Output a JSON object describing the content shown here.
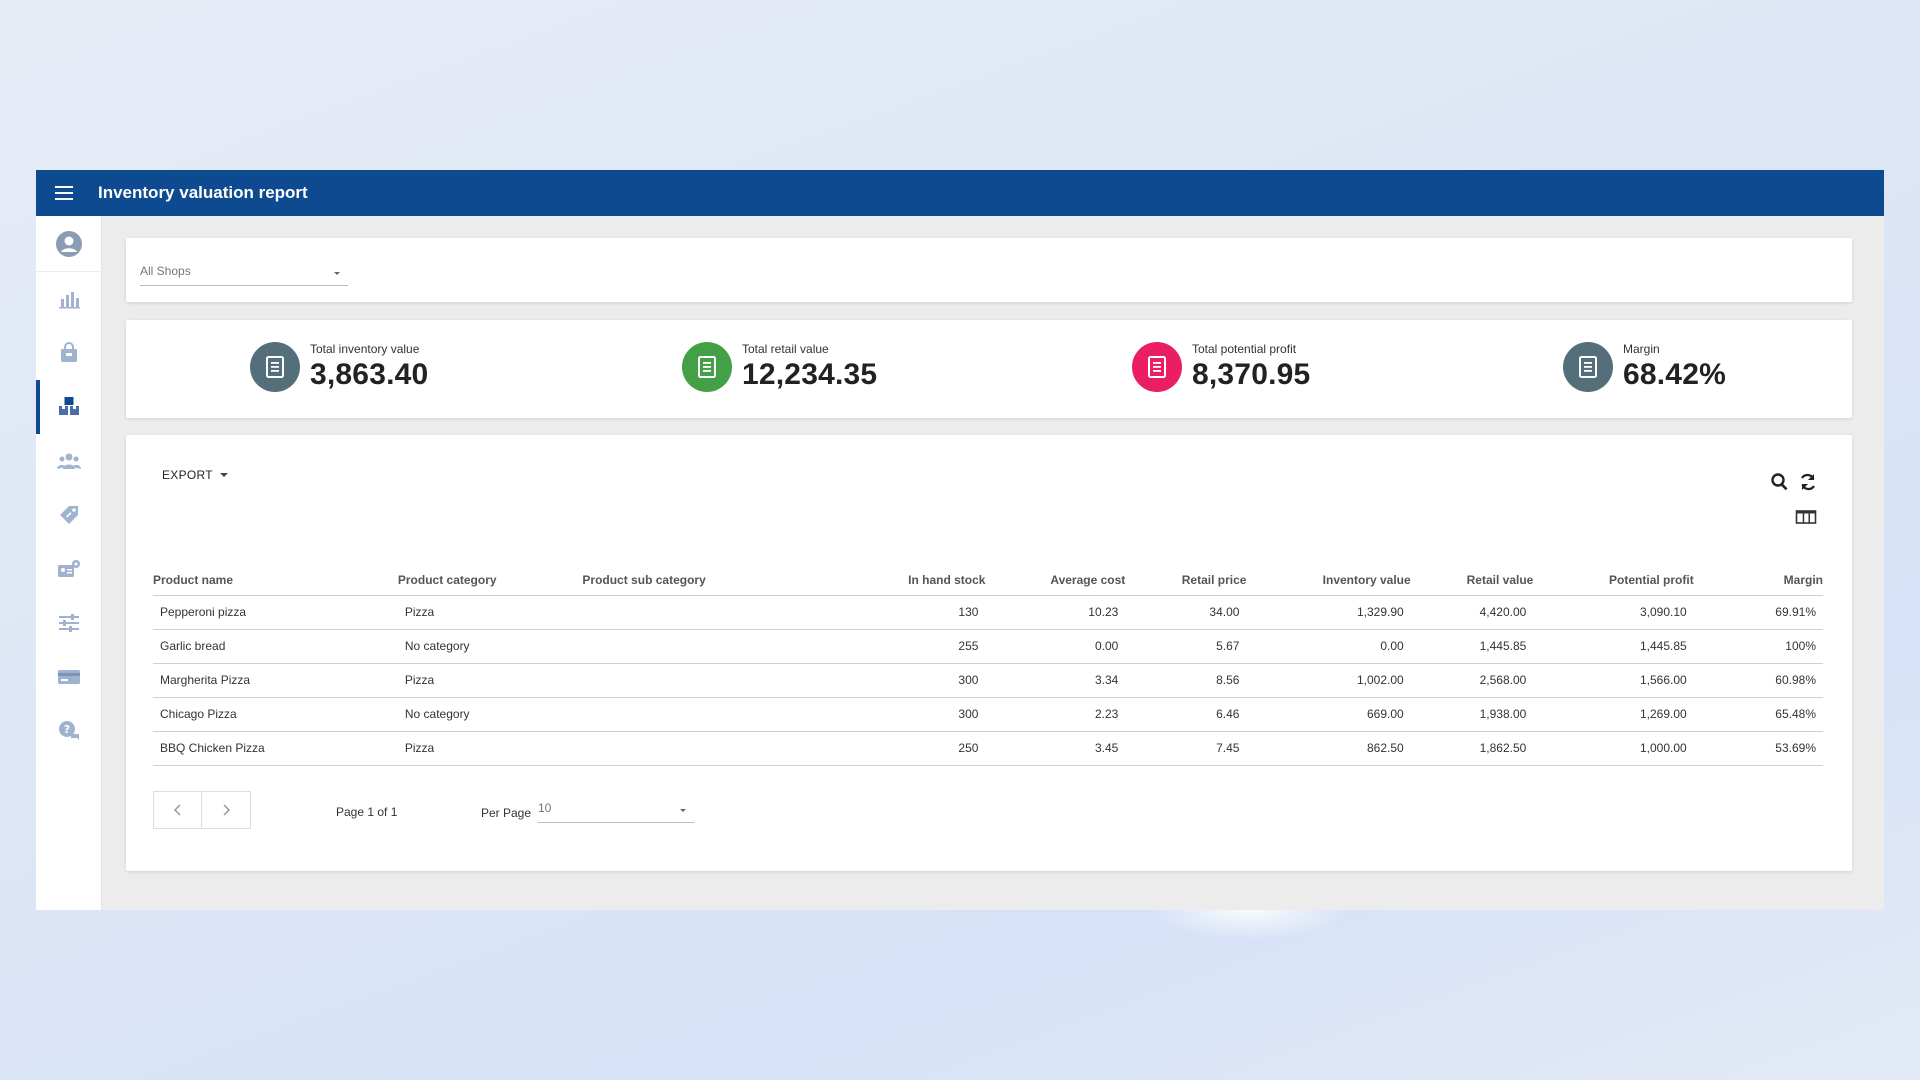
{
  "header": {
    "title": "Inventory valuation report"
  },
  "sidebar": {
    "items": [
      {
        "icon": "profile-icon"
      },
      {
        "icon": "bar-chart-icon"
      },
      {
        "icon": "shopping-bag-icon"
      },
      {
        "icon": "boxes-icon",
        "active": true
      },
      {
        "icon": "people-icon"
      },
      {
        "icon": "tag-icon"
      },
      {
        "icon": "id-card-icon"
      },
      {
        "icon": "sliders-icon"
      },
      {
        "icon": "credit-card-icon"
      },
      {
        "icon": "help-chat-icon"
      }
    ]
  },
  "filter": {
    "shop": "All Shops"
  },
  "stats": [
    {
      "label": "Total inventory value",
      "value": "3,863.40",
      "color": "#546e7a"
    },
    {
      "label": "Total retail value",
      "value": "12,234.35",
      "color": "#43a047"
    },
    {
      "label": "Total potential profit",
      "value": "8,370.95",
      "color": "#e91e63"
    },
    {
      "label": "Margin",
      "value": "68.42%",
      "color": "#546e7a"
    }
  ],
  "toolbar": {
    "export_label": "EXPORT"
  },
  "table": {
    "columns": [
      "Product name",
      "Product category",
      "Product sub category",
      "In hand stock",
      "Average cost",
      "Retail price",
      "Inventory value",
      "Retail value",
      "Potential profit",
      "Margin"
    ],
    "rows": [
      [
        "Pepperoni pizza",
        "Pizza",
        "",
        "130",
        "10.23",
        "34.00",
        "1,329.90",
        "4,420.00",
        "3,090.10",
        "69.91%"
      ],
      [
        "Garlic bread",
        "No category",
        "",
        "255",
        "0.00",
        "5.67",
        "0.00",
        "1,445.85",
        "1,445.85",
        "100%"
      ],
      [
        "Margherita Pizza",
        "Pizza",
        "",
        "300",
        "3.34",
        "8.56",
        "1,002.00",
        "2,568.00",
        "1,566.00",
        "60.98%"
      ],
      [
        "Chicago Pizza",
        "No category",
        "",
        "300",
        "2.23",
        "6.46",
        "669.00",
        "1,938.00",
        "1,269.00",
        "65.48%"
      ],
      [
        "BBQ Chicken Pizza",
        "Pizza",
        "",
        "250",
        "3.45",
        "7.45",
        "862.50",
        "1,862.50",
        "1,000.00",
        "53.69%"
      ]
    ]
  },
  "pagination": {
    "page_info": "Page 1 of 1",
    "per_page_label": "Per Page",
    "per_page_value": "10"
  },
  "colors": {
    "primary": "#0e4a8f"
  }
}
